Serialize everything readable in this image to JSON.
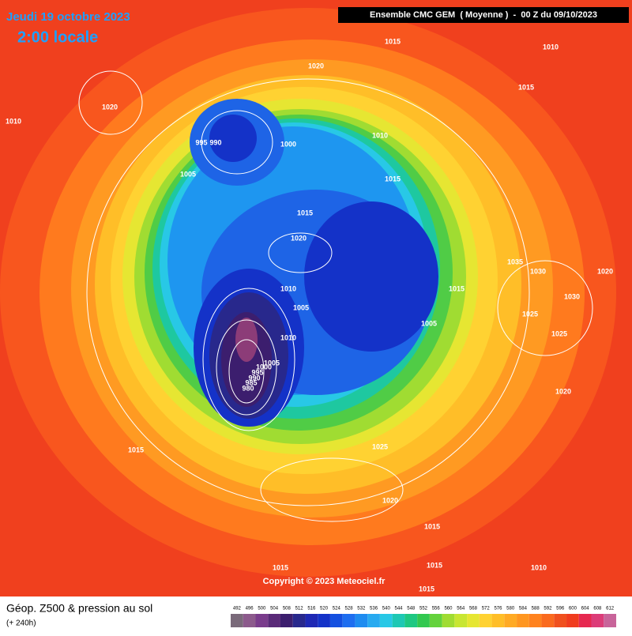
{
  "header": {
    "date": "Jeudi 19 octobre 2023",
    "time": "2:00 locale",
    "run": "Ensemble CMC GEM  ( Moyenne )  -  00 Z du 09/10/2023"
  },
  "map": {
    "isobar_labels": [
      "1015",
      "1010",
      "1020",
      "1015",
      "1020",
      "1010",
      "995",
      "990",
      "1000",
      "1010",
      "1005",
      "1015",
      "1015",
      "1020",
      "1035",
      "1030",
      "1020",
      "1010",
      "1015",
      "1005",
      "1030",
      "1025",
      "1005",
      "1010",
      "1025",
      "1005",
      "1000",
      "995",
      "990",
      "985",
      "980",
      "1020",
      "1015",
      "1025",
      "1020",
      "1015",
      "1015",
      "1015",
      "1010",
      "1015"
    ],
    "copyright": "Copyright © 2023 Meteociel.fr"
  },
  "footer": {
    "title": "Géop. Z500 & pression au sol",
    "lead": "(+ 240h)"
  },
  "legend": {
    "labels": [
      "492",
      "496",
      "500",
      "504",
      "508",
      "512",
      "516",
      "520",
      "524",
      "528",
      "532",
      "536",
      "540",
      "544",
      "548",
      "552",
      "556",
      "560",
      "564",
      "568",
      "572",
      "576",
      "580",
      "584",
      "588",
      "592",
      "596",
      "600",
      "604",
      "608",
      "612"
    ],
    "colors": [
      "#7a6a7a",
      "#8c5a8c",
      "#7a3c8c",
      "#5a2a78",
      "#3c1e6e",
      "#28288c",
      "#1e28b4",
      "#1432c8",
      "#1450e0",
      "#1e6ef0",
      "#1e8cf0",
      "#28aaf0",
      "#28c8e6",
      "#1ec8b4",
      "#1ec882",
      "#32c850",
      "#64d23c",
      "#a0dc32",
      "#c8e632",
      "#e6e632",
      "#ffd232",
      "#ffbe28",
      "#ffaa24",
      "#ff9620",
      "#ff821e",
      "#fa6a1e",
      "#f0501e",
      "#f03c1e",
      "#e62850",
      "#dc3c78",
      "#c8649a"
    ]
  }
}
